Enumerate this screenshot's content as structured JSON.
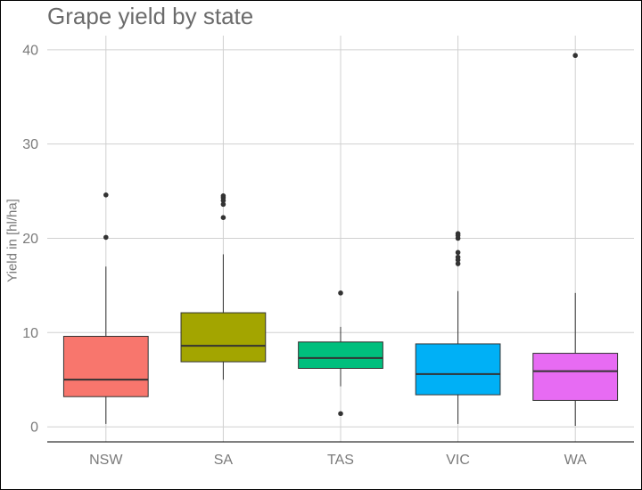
{
  "chart_data": {
    "type": "box",
    "title": "Grape yield by state",
    "xlabel": "",
    "ylabel": "Yield in [hl/ha]",
    "ylim": [
      -1.6,
      41.5
    ],
    "yticks": [
      0,
      10,
      20,
      30,
      40
    ],
    "grid": true,
    "legend": "none",
    "categories": [
      "NSW",
      "SA",
      "TAS",
      "VIC",
      "WA"
    ],
    "boxes": [
      {
        "name": "NSW",
        "color": "#F8766D",
        "whisker_low": 0.3,
        "q1": 3.2,
        "median": 5.0,
        "q3": 9.6,
        "whisker_high": 17.0,
        "outliers": [
          20.1,
          24.6
        ]
      },
      {
        "name": "SA",
        "color": "#A3A500",
        "whisker_low": 5.0,
        "q1": 6.9,
        "median": 8.6,
        "q3": 12.1,
        "whisker_high": 18.3,
        "outliers": [
          22.2,
          23.6,
          24.0,
          24.3,
          24.5
        ]
      },
      {
        "name": "TAS",
        "color": "#00BF7D",
        "whisker_low": 4.3,
        "q1": 6.2,
        "median": 7.3,
        "q3": 9.0,
        "whisker_high": 10.6,
        "outliers": [
          1.4,
          14.2
        ]
      },
      {
        "name": "VIC",
        "color": "#00B0F6",
        "whisker_low": 0.3,
        "q1": 3.4,
        "median": 5.6,
        "q3": 8.8,
        "whisker_high": 14.4,
        "outliers": [
          17.3,
          17.7,
          18.0,
          18.5,
          20.0,
          20.3,
          20.5
        ]
      },
      {
        "name": "WA",
        "color": "#E76BF3",
        "whisker_low": 0.1,
        "q1": 2.8,
        "median": 5.9,
        "q3": 7.8,
        "whisker_high": 14.2,
        "outliers": [
          39.4
        ]
      }
    ]
  }
}
